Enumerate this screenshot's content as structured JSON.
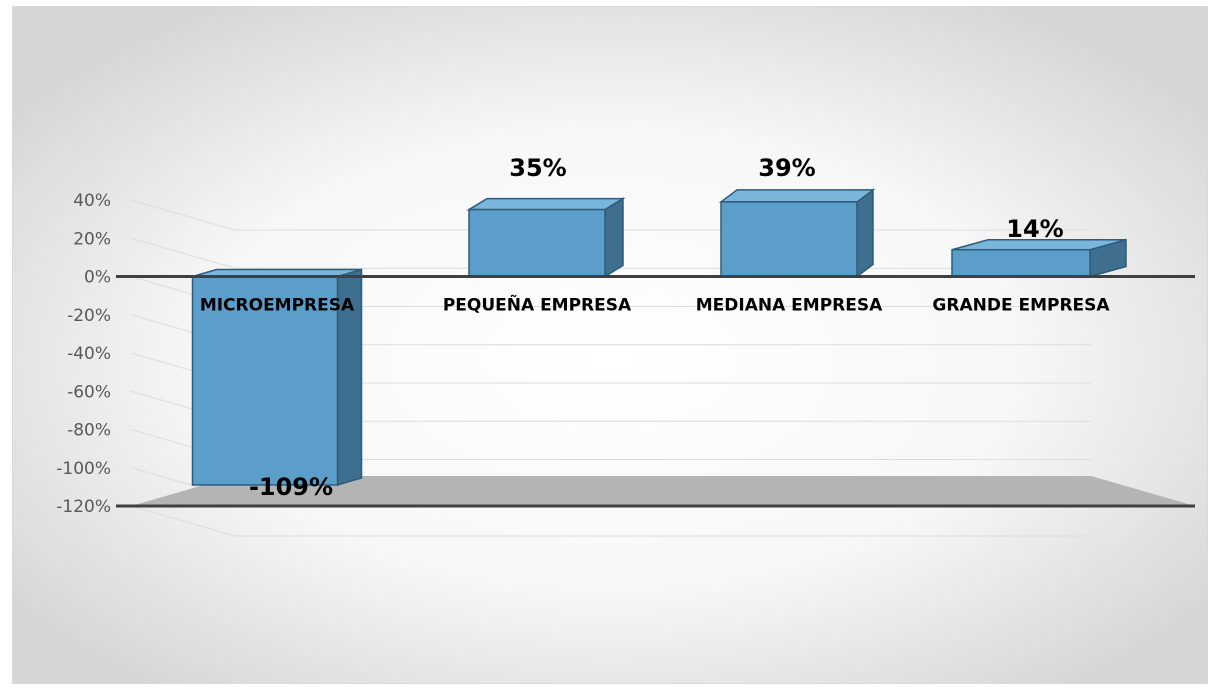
{
  "chart_data": {
    "type": "bar",
    "categories": [
      "MICROEMPRESA",
      "PEQUEÑA EMPRESA",
      "MEDIANA EMPRESA",
      "GRANDE EMPRESA"
    ],
    "values": [
      -109,
      35,
      39,
      14
    ],
    "value_labels": [
      "-109%",
      "35%",
      "39%",
      "14%"
    ],
    "yticks": [
      "40%",
      "20%",
      "0%",
      "-20%",
      "-40%",
      "-60%",
      "-80%",
      "-100%",
      "-120%"
    ],
    "ylim": [
      -120,
      40
    ],
    "grid": true,
    "legend": "none",
    "style": "3d-column",
    "colors": {
      "bar_front": "#5b9ec9",
      "bar_side": "#3e6f8f",
      "bar_top": "#7ab6dc",
      "bar_edge": "#2e5c7a",
      "floor": "#b4b4b4",
      "axis": "#404040",
      "gridline": "#dcdcdc",
      "background_center": "#ffffff",
      "background_edge": "#d6d6d6"
    }
  }
}
